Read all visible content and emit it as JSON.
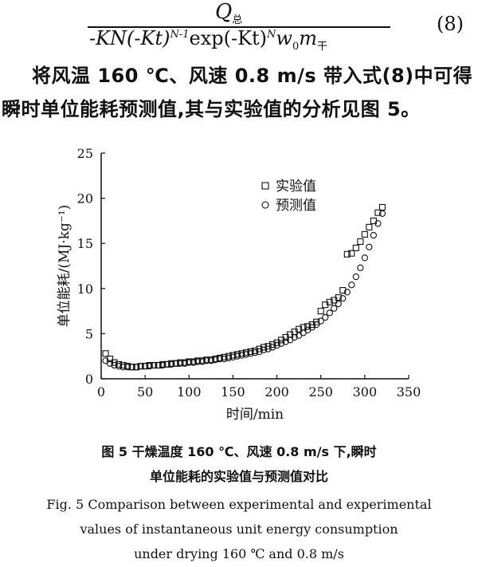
{
  "equation": {
    "numerator": "Q",
    "numerator_sub": "总",
    "denominator_p1": "-KN(-Kt)",
    "denominator_exp1": "N-1",
    "denominator_p2": "exp(-Kt)",
    "denominator_exp2": "N",
    "denominator_p3": "w",
    "denominator_sub1": "0",
    "denominator_p4": "m",
    "denominator_sub2": "干",
    "number": "(8)"
  },
  "body": {
    "line1": "将风温 160 ℃、风速 0.8 m/s 带入式(8)中可得",
    "line2": "瞬时单位能耗预测值,其与实验值的分析见图 5。"
  },
  "chart_data": {
    "type": "scatter",
    "xlabel": "时间/min",
    "ylabel": "单位能耗/(MJ·kg⁻¹)",
    "xlim": [
      0,
      350
    ],
    "ylim": [
      0,
      25
    ],
    "xticks": [
      0,
      50,
      100,
      150,
      200,
      250,
      300,
      350
    ],
    "yticks": [
      0,
      5,
      10,
      15,
      20,
      25
    ],
    "legend_position": "top-right",
    "grid": false,
    "series": [
      {
        "name": "实验值",
        "marker": "square",
        "x": [
          5,
          10,
          15,
          20,
          25,
          30,
          35,
          40,
          45,
          50,
          55,
          60,
          65,
          70,
          75,
          80,
          85,
          90,
          95,
          100,
          105,
          110,
          115,
          120,
          125,
          130,
          135,
          140,
          145,
          150,
          155,
          160,
          165,
          170,
          175,
          180,
          185,
          190,
          195,
          200,
          205,
          210,
          215,
          220,
          225,
          230,
          235,
          240,
          245,
          250,
          255,
          260,
          265,
          270,
          275,
          280,
          285,
          290,
          295,
          300,
          305,
          310,
          315,
          320
        ],
        "y": [
          2.8,
          2.2,
          1.8,
          1.6,
          1.5,
          1.4,
          1.3,
          1.3,
          1.4,
          1.4,
          1.5,
          1.5,
          1.5,
          1.6,
          1.6,
          1.7,
          1.7,
          1.8,
          1.8,
          1.9,
          1.9,
          2.0,
          2.0,
          2.1,
          2.1,
          2.2,
          2.3,
          2.4,
          2.5,
          2.6,
          2.7,
          2.8,
          2.9,
          3.0,
          3.1,
          3.3,
          3.5,
          3.6,
          3.8,
          4.0,
          4.3,
          4.6,
          4.9,
          5.2,
          5.5,
          5.7,
          5.8,
          6.0,
          6.3,
          7.5,
          8.2,
          8.5,
          8.7,
          9.0,
          9.8,
          13.8,
          13.9,
          14.5,
          15.2,
          16.0,
          16.8,
          17.5,
          18.4,
          19.0
        ]
      },
      {
        "name": "预测值",
        "marker": "circle",
        "x": [
          5,
          10,
          15,
          20,
          25,
          30,
          35,
          40,
          45,
          50,
          55,
          60,
          65,
          70,
          75,
          80,
          85,
          90,
          95,
          100,
          105,
          110,
          115,
          120,
          125,
          130,
          135,
          140,
          145,
          150,
          155,
          160,
          165,
          170,
          175,
          180,
          185,
          190,
          195,
          200,
          205,
          210,
          215,
          220,
          225,
          230,
          235,
          240,
          245,
          250,
          255,
          260,
          265,
          270,
          275,
          280,
          285,
          290,
          295,
          300,
          305,
          310,
          315,
          320
        ],
        "y": [
          2.0,
          1.7,
          1.5,
          1.4,
          1.3,
          1.3,
          1.3,
          1.3,
          1.4,
          1.4,
          1.4,
          1.5,
          1.5,
          1.5,
          1.6,
          1.6,
          1.7,
          1.7,
          1.7,
          1.8,
          1.8,
          1.9,
          1.9,
          2.0,
          2.0,
          2.1,
          2.2,
          2.2,
          2.3,
          2.4,
          2.5,
          2.6,
          2.7,
          2.8,
          2.9,
          3.0,
          3.2,
          3.3,
          3.5,
          3.7,
          3.9,
          4.1,
          4.3,
          4.6,
          4.8,
          5.1,
          5.4,
          5.7,
          6.0,
          6.4,
          6.8,
          7.3,
          7.8,
          8.3,
          8.9,
          9.6,
          10.4,
          11.3,
          12.3,
          13.4,
          14.6,
          15.9,
          17.2,
          18.3
        ]
      }
    ]
  },
  "caption": {
    "cn_line1": "图 5    干燥温度 160 ℃、风速 0.8 m/s 下,瞬时",
    "cn_line2": "单位能耗的实验值与预测值对比",
    "en_line1": "Fig. 5    Comparison between experimental and experimental",
    "en_line2": "values of instantaneous unit energy consumption",
    "en_line3": "under drying 160 ℃ and 0.8 m/s"
  }
}
